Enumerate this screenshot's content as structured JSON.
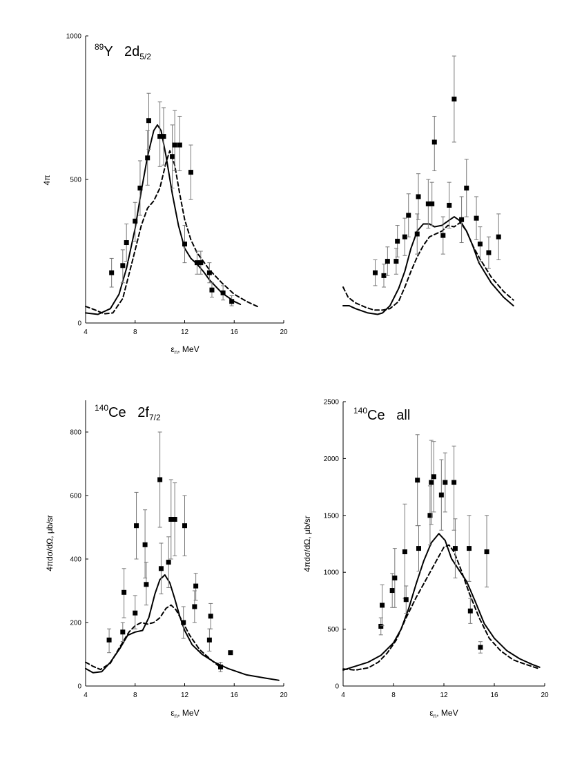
{
  "chart_data": [
    {
      "type": "scatter",
      "panel": "top-left",
      "title_sup": "89",
      "title_main": "Y   2d",
      "title_sub": "5/2",
      "xlabel_main": "ε",
      "xlabel_sub": "n",
      "xlabel_rest": ", MeV",
      "ylabel": "4π",
      "xlim": [
        4,
        20
      ],
      "ylim": [
        0,
        1000
      ],
      "xticks": [
        4,
        8,
        12,
        16,
        20
      ],
      "yticks": [
        0,
        500,
        1000
      ],
      "points": [
        {
          "x": 6.1,
          "y": 175,
          "lo": 125,
          "hi": 225
        },
        {
          "x": 7.0,
          "y": 200,
          "lo": 140,
          "hi": 255
        },
        {
          "x": 7.3,
          "y": 280,
          "lo": 215,
          "hi": 345
        },
        {
          "x": 8.0,
          "y": 355,
          "lo": 285,
          "hi": 420
        },
        {
          "x": 8.4,
          "y": 470,
          "lo": 375,
          "hi": 565
        },
        {
          "x": 9.0,
          "y": 575,
          "lo": 480,
          "hi": 670
        },
        {
          "x": 9.1,
          "y": 705,
          "lo": 605,
          "hi": 800
        },
        {
          "x": 10.0,
          "y": 650,
          "lo": 545,
          "hi": 770
        },
        {
          "x": 10.3,
          "y": 650,
          "lo": 550,
          "hi": 750
        },
        {
          "x": 11.0,
          "y": 580,
          "lo": 470,
          "hi": 690
        },
        {
          "x": 11.2,
          "y": 620,
          "lo": 530,
          "hi": 740
        },
        {
          "x": 11.6,
          "y": 620,
          "lo": 530,
          "hi": 720
        },
        {
          "x": 12.0,
          "y": 275,
          "lo": 210,
          "hi": 340
        },
        {
          "x": 12.5,
          "y": 525,
          "lo": 430,
          "hi": 620
        },
        {
          "x": 13.0,
          "y": 210,
          "lo": 170,
          "hi": 250
        },
        {
          "x": 13.3,
          "y": 210,
          "lo": 170,
          "hi": 250
        },
        {
          "x": 14.0,
          "y": 175,
          "lo": 140,
          "hi": 210
        },
        {
          "x": 14.2,
          "y": 115,
          "lo": 90,
          "hi": 140
        },
        {
          "x": 15.1,
          "y": 105,
          "lo": 80,
          "hi": 130
        },
        {
          "x": 15.8,
          "y": 75,
          "lo": 60,
          "hi": 95
        }
      ],
      "series": [
        {
          "name": "solid",
          "x": [
            4.0,
            5.0,
            6.0,
            6.7,
            7.3,
            8.0,
            8.5,
            9.0,
            9.5,
            9.8,
            10.1,
            10.5,
            11.0,
            11.5,
            12.0,
            12.5,
            13.0,
            13.5,
            14.0,
            15.0,
            16.0,
            16.5
          ],
          "y": [
            35,
            30,
            50,
            100,
            190,
            330,
            460,
            580,
            670,
            690,
            670,
            580,
            450,
            340,
            260,
            225,
            205,
            180,
            150,
            105,
            75,
            65
          ]
        },
        {
          "name": "dashed",
          "x": [
            4.0,
            4.8,
            5.5,
            6.2,
            7.0,
            7.8,
            8.5,
            9.0,
            9.5,
            10.0,
            10.5,
            10.8,
            11.2,
            11.6,
            12.0,
            12.5,
            13.0,
            14.0,
            15.0,
            16.0,
            17.0,
            18.0
          ],
          "y": [
            58,
            45,
            32,
            35,
            85,
            220,
            340,
            400,
            425,
            470,
            560,
            600,
            550,
            450,
            360,
            290,
            245,
            185,
            140,
            100,
            75,
            55
          ]
        }
      ]
    },
    {
      "type": "scatter",
      "panel": "top-right",
      "xlim": [
        4,
        20
      ],
      "ylim": [
        0,
        1000
      ],
      "points": [
        {
          "x": 6.6,
          "y": 175,
          "lo": 130,
          "hi": 220
        },
        {
          "x": 7.3,
          "y": 165,
          "lo": 125,
          "hi": 205
        },
        {
          "x": 7.6,
          "y": 215,
          "lo": 165,
          "hi": 265
        },
        {
          "x": 8.3,
          "y": 215,
          "lo": 170,
          "hi": 260
        },
        {
          "x": 8.4,
          "y": 285,
          "lo": 230,
          "hi": 340
        },
        {
          "x": 9.0,
          "y": 300,
          "lo": 235,
          "hi": 365
        },
        {
          "x": 9.3,
          "y": 375,
          "lo": 300,
          "hi": 450
        },
        {
          "x": 10.0,
          "y": 310,
          "lo": 240,
          "hi": 380
        },
        {
          "x": 10.1,
          "y": 440,
          "lo": 360,
          "hi": 520
        },
        {
          "x": 10.9,
          "y": 415,
          "lo": 330,
          "hi": 500
        },
        {
          "x": 11.2,
          "y": 415,
          "lo": 340,
          "hi": 490
        },
        {
          "x": 11.4,
          "y": 630,
          "lo": 530,
          "hi": 720
        },
        {
          "x": 12.1,
          "y": 305,
          "lo": 240,
          "hi": 370
        },
        {
          "x": 12.6,
          "y": 410,
          "lo": 330,
          "hi": 490
        },
        {
          "x": 13.0,
          "y": 780,
          "lo": 630,
          "hi": 930
        },
        {
          "x": 13.6,
          "y": 360,
          "lo": 280,
          "hi": 440
        },
        {
          "x": 14.0,
          "y": 470,
          "lo": 370,
          "hi": 570
        },
        {
          "x": 14.8,
          "y": 365,
          "lo": 290,
          "hi": 440
        },
        {
          "x": 15.1,
          "y": 275,
          "lo": 215,
          "hi": 335
        },
        {
          "x": 15.8,
          "y": 245,
          "lo": 190,
          "hi": 300
        },
        {
          "x": 16.6,
          "y": 300,
          "lo": 220,
          "hi": 380
        }
      ],
      "series": [
        {
          "name": "solid",
          "x": [
            4.0,
            4.5,
            5.0,
            6.0,
            6.8,
            7.2,
            7.8,
            8.5,
            9.0,
            9.5,
            10.0,
            10.5,
            11.0,
            11.4,
            12.0,
            12.5,
            13.0,
            13.5,
            14.0,
            14.5,
            15.0,
            16.0,
            17.0,
            17.8
          ],
          "y": [
            60,
            60,
            50,
            35,
            30,
            35,
            60,
            120,
            180,
            260,
            320,
            345,
            345,
            335,
            340,
            355,
            370,
            355,
            320,
            270,
            210,
            140,
            90,
            60
          ]
        },
        {
          "name": "dashed",
          "x": [
            4.0,
            4.4,
            5.0,
            5.8,
            6.5,
            7.2,
            7.8,
            8.5,
            9.0,
            9.5,
            10.0,
            10.5,
            11.0,
            11.5,
            12.0,
            12.5,
            13.0,
            13.5,
            14.0,
            14.5,
            15.0,
            16.0,
            17.0,
            17.8
          ],
          "y": [
            125,
            90,
            70,
            55,
            45,
            45,
            50,
            75,
            125,
            180,
            230,
            270,
            300,
            310,
            320,
            340,
            335,
            350,
            320,
            270,
            230,
            160,
            110,
            80
          ]
        }
      ]
    },
    {
      "type": "scatter",
      "panel": "bottom-left",
      "title_sup": "140",
      "title_main": "Ce   2f",
      "title_sub": "7/2",
      "xlabel_main": "ε",
      "xlabel_sub": "n",
      "xlabel_rest": ", MeV",
      "ylabel": "4πdσ/dΩ, μb/sr",
      "xlim": [
        4,
        20
      ],
      "ylim": [
        0,
        900
      ],
      "xticks": [
        4,
        8,
        12,
        16,
        20
      ],
      "yticks": [
        0,
        200,
        400,
        600,
        800
      ],
      "points": [
        {
          "x": 5.9,
          "y": 145,
          "lo": 105,
          "hi": 180
        },
        {
          "x": 7.0,
          "y": 170,
          "lo": 140,
          "hi": 200
        },
        {
          "x": 7.1,
          "y": 295,
          "lo": 215,
          "hi": 370
        },
        {
          "x": 8.0,
          "y": 230,
          "lo": 180,
          "hi": 285
        },
        {
          "x": 8.1,
          "y": 505,
          "lo": 400,
          "hi": 610
        },
        {
          "x": 8.8,
          "y": 445,
          "lo": 340,
          "hi": 555
        },
        {
          "x": 8.9,
          "y": 320,
          "lo": 255,
          "hi": 390
        },
        {
          "x": 10.0,
          "y": 650,
          "lo": 500,
          "hi": 800
        },
        {
          "x": 10.1,
          "y": 370,
          "lo": 290,
          "hi": 450
        },
        {
          "x": 10.7,
          "y": 390,
          "lo": 310,
          "hi": 470
        },
        {
          "x": 10.9,
          "y": 525,
          "lo": 400,
          "hi": 650
        },
        {
          "x": 11.2,
          "y": 525,
          "lo": 410,
          "hi": 640
        },
        {
          "x": 11.9,
          "y": 200,
          "lo": 150,
          "hi": 250
        },
        {
          "x": 12.0,
          "y": 505,
          "lo": 410,
          "hi": 600
        },
        {
          "x": 12.8,
          "y": 250,
          "lo": 200,
          "hi": 300
        },
        {
          "x": 12.9,
          "y": 315,
          "lo": 270,
          "hi": 355
        },
        {
          "x": 14.0,
          "y": 145,
          "lo": 110,
          "hi": 180
        },
        {
          "x": 14.1,
          "y": 220,
          "lo": 180,
          "hi": 260
        },
        {
          "x": 14.9,
          "y": 60,
          "lo": 45,
          "hi": 75
        },
        {
          "x": 15.7,
          "y": 105,
          "lo": 105,
          "hi": 105
        }
      ],
      "series": [
        {
          "name": "solid",
          "x": [
            4.0,
            4.6,
            5.3,
            6.0,
            6.8,
            7.4,
            8.0,
            8.6,
            9.1,
            9.6,
            10.0,
            10.4,
            10.8,
            11.2,
            11.6,
            12.0,
            12.6,
            13.4,
            14.4,
            15.5,
            17.0,
            18.5,
            19.6
          ],
          "y": [
            55,
            42,
            45,
            75,
            120,
            160,
            170,
            175,
            215,
            290,
            335,
            350,
            325,
            275,
            220,
            175,
            130,
            100,
            75,
            55,
            35,
            25,
            18
          ]
        },
        {
          "name": "dashed",
          "x": [
            4.0,
            4.6,
            5.2,
            6.0,
            6.8,
            7.5,
            8.0,
            8.5,
            9.0,
            9.5,
            10.0,
            10.5,
            10.9,
            11.3,
            11.8,
            12.4,
            13.2,
            14.2,
            15.0
          ],
          "y": [
            75,
            62,
            52,
            72,
            125,
            170,
            190,
            200,
            195,
            200,
            215,
            245,
            255,
            240,
            205,
            160,
            115,
            80,
            55
          ]
        }
      ]
    },
    {
      "type": "scatter",
      "panel": "bottom-right",
      "title_sup": "140",
      "title_main": "Ce   all",
      "xlabel_main": "ε",
      "xlabel_sub": "n",
      "xlabel_rest": ", MeV",
      "ylabel": "4πdσ/dΩ, μb/sr",
      "xlim": [
        4,
        20
      ],
      "ylim": [
        0,
        2500
      ],
      "xticks": [
        4,
        8,
        12,
        16,
        20
      ],
      "yticks": [
        0,
        500,
        1000,
        1500,
        2000,
        2500
      ],
      "points": [
        {
          "x": 7.0,
          "y": 525,
          "lo": 450,
          "hi": 600
        },
        {
          "x": 7.1,
          "y": 710,
          "lo": 530,
          "hi": 890
        },
        {
          "x": 7.9,
          "y": 840,
          "lo": 690,
          "hi": 990
        },
        {
          "x": 8.1,
          "y": 950,
          "lo": 690,
          "hi": 1210
        },
        {
          "x": 8.9,
          "y": 1180,
          "lo": 770,
          "hi": 1600
        },
        {
          "x": 9.0,
          "y": 760,
          "lo": 640,
          "hi": 880
        },
        {
          "x": 9.9,
          "y": 1810,
          "lo": 1410,
          "hi": 2210
        },
        {
          "x": 10.0,
          "y": 1210,
          "lo": 1010,
          "hi": 1410
        },
        {
          "x": 10.9,
          "y": 1500,
          "lo": 1240,
          "hi": 1760
        },
        {
          "x": 11.0,
          "y": 1790,
          "lo": 1420,
          "hi": 2160
        },
        {
          "x": 11.2,
          "y": 1840,
          "lo": 1530,
          "hi": 2150
        },
        {
          "x": 11.8,
          "y": 1680,
          "lo": 1370,
          "hi": 1990
        },
        {
          "x": 12.1,
          "y": 1790,
          "lo": 1530,
          "hi": 2050
        },
        {
          "x": 12.8,
          "y": 1790,
          "lo": 1370,
          "hi": 2110
        },
        {
          "x": 12.9,
          "y": 1210,
          "lo": 950,
          "hi": 1470
        },
        {
          "x": 14.0,
          "y": 1210,
          "lo": 920,
          "hi": 1500
        },
        {
          "x": 14.1,
          "y": 660,
          "lo": 550,
          "hi": 770
        },
        {
          "x": 14.9,
          "y": 340,
          "lo": 290,
          "hi": 390
        },
        {
          "x": 15.4,
          "y": 1180,
          "lo": 870,
          "hi": 1500
        }
      ],
      "series": [
        {
          "name": "solid",
          "x": [
            4.0,
            5.0,
            6.0,
            7.0,
            8.0,
            8.6,
            9.2,
            9.8,
            10.4,
            11.0,
            11.6,
            12.1,
            12.6,
            13.2,
            13.8,
            14.5,
            15.2,
            16.0,
            17.0,
            18.0,
            19.0,
            19.6
          ],
          "y": [
            140,
            175,
            210,
            270,
            380,
            500,
            680,
            900,
            1100,
            1260,
            1340,
            1280,
            1120,
            1020,
            920,
            740,
            550,
            420,
            310,
            240,
            190,
            165
          ]
        },
        {
          "name": "dashed",
          "x": [
            4.0,
            5.0,
            6.0,
            6.8,
            7.5,
            8.2,
            9.0,
            9.8,
            10.6,
            11.4,
            12.0,
            12.4,
            12.8,
            13.3,
            14.0,
            14.8,
            15.6,
            16.5,
            17.5,
            18.5,
            19.6
          ],
          "y": [
            150,
            140,
            160,
            210,
            290,
            400,
            600,
            780,
            940,
            1100,
            1220,
            1240,
            1180,
            1040,
            820,
            600,
            420,
            310,
            230,
            190,
            150
          ]
        }
      ]
    }
  ]
}
